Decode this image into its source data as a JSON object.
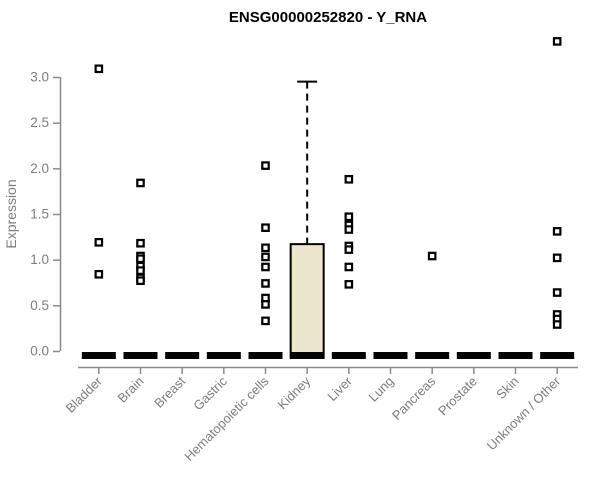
{
  "page": {
    "background": "#ffffff"
  },
  "chart_data": {
    "type": "boxplot",
    "title": "ENSG00000252820 - Y_RNA",
    "ylabel": "Expression",
    "xlabel": "",
    "ylim": [
      0,
      3.45
    ],
    "yticks": [
      0,
      0.5,
      1,
      1.5,
      2,
      2.5,
      3
    ],
    "grid": false,
    "legend": false,
    "categories": [
      "Bladder",
      "Brain",
      "Breast",
      "Gastric",
      "Hematopoietic cells",
      "Kidney",
      "Liver",
      "Lung",
      "Pancreas",
      "Prostate",
      "Skin",
      "Unknown / Other"
    ],
    "boxes": [
      {
        "category": "Bladder",
        "whisker_low": 0,
        "q1": 0,
        "median": 0,
        "q3": 0,
        "whisker_high": 0,
        "outliers": [
          3.09,
          1.19,
          0.84
        ]
      },
      {
        "category": "Brain",
        "whisker_low": 0,
        "q1": 0,
        "median": 0,
        "q3": 0,
        "whisker_high": 0,
        "outliers": [
          1.84,
          1.18,
          1.04,
          1.01,
          0.93,
          0.88,
          0.8,
          0.77
        ]
      },
      {
        "category": "Breast",
        "whisker_low": 0,
        "q1": 0,
        "median": 0,
        "q3": 0,
        "whisker_high": 0,
        "outliers": []
      },
      {
        "category": "Gastric",
        "whisker_low": 0,
        "q1": 0,
        "median": 0,
        "q3": 0,
        "whisker_high": 0,
        "outliers": []
      },
      {
        "category": "Hematopoietic cells",
        "whisker_low": 0,
        "q1": 0,
        "median": 0,
        "q3": 0,
        "whisker_high": 0,
        "outliers": [
          2.03,
          1.35,
          1.13,
          1.03,
          0.92,
          0.74,
          0.58,
          0.51,
          0.33
        ]
      },
      {
        "category": "Kidney",
        "whisker_low": 0,
        "q1": 0,
        "median": 0,
        "q3": 1.17,
        "whisker_high": 2.95,
        "outliers": []
      },
      {
        "category": "Liver",
        "whisker_low": 0,
        "q1": 0,
        "median": 0,
        "q3": 0,
        "whisker_high": 0,
        "outliers": [
          1.88,
          1.47,
          1.38,
          1.33,
          1.15,
          1.11,
          0.92,
          0.73
        ]
      },
      {
        "category": "Lung",
        "whisker_low": 0,
        "q1": 0,
        "median": 0,
        "q3": 0,
        "whisker_high": 0,
        "outliers": []
      },
      {
        "category": "Pancreas",
        "whisker_low": 0,
        "q1": 0,
        "median": 0,
        "q3": 0,
        "whisker_high": 0,
        "outliers": [
          1.04
        ]
      },
      {
        "category": "Prostate",
        "whisker_low": 0,
        "q1": 0,
        "median": 0,
        "q3": 0,
        "whisker_high": 0,
        "outliers": []
      },
      {
        "category": "Skin",
        "whisker_low": 0,
        "q1": 0,
        "median": 0,
        "q3": 0,
        "whisker_high": 0,
        "outliers": []
      },
      {
        "category": "Unknown / Other",
        "whisker_low": 0,
        "q1": 0,
        "median": 0,
        "q3": 0,
        "whisker_high": 0,
        "outliers": [
          3.39,
          1.31,
          1.02,
          0.64,
          0.4,
          0.35,
          0.29
        ]
      }
    ],
    "style": {
      "box_fill": "#ece6cc",
      "box_stroke": "#000000",
      "point_fill": "#ffffff",
      "point_stroke": "#000000",
      "axis_color": "#8a8a8a",
      "label_color": "#7d7d7d",
      "title_color": "#000000"
    }
  }
}
